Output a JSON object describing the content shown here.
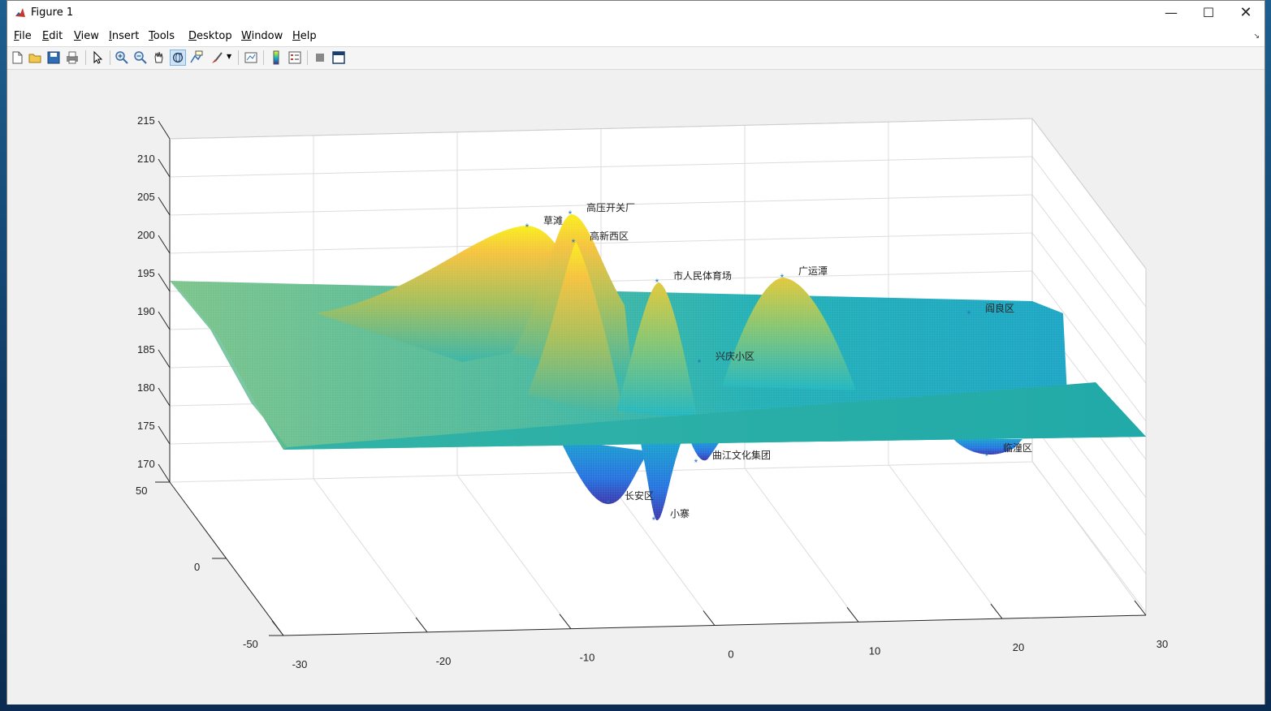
{
  "window": {
    "title": "Figure 1"
  },
  "menu": [
    {
      "label": "File",
      "key": "F",
      "rest": "ile"
    },
    {
      "label": "Edit",
      "key": "E",
      "rest": "dit"
    },
    {
      "label": "View",
      "key": "V",
      "rest": "iew"
    },
    {
      "label": "Insert",
      "key": "I",
      "rest": "nsert"
    },
    {
      "label": "Tools",
      "key": "T",
      "rest": "ools"
    },
    {
      "label": "Desktop",
      "key": "D",
      "rest": "esktop"
    },
    {
      "label": "Window",
      "key": "W",
      "rest": "indow"
    },
    {
      "label": "Help",
      "key": "H",
      "rest": "elp"
    }
  ],
  "toolbar_icons": [
    "new-figure-icon",
    "open-file-icon",
    "save-icon",
    "print-icon",
    "select-pointer-icon",
    "zoom-in-icon",
    "zoom-out-icon",
    "pan-hand-icon",
    "rotate-3d-icon",
    "data-cursor-icon",
    "brush-icon",
    "link-plot-icon",
    "colorbar-icon",
    "legend-icon",
    "hide-plot-tools-icon",
    "show-plot-tools-icon"
  ],
  "active_tool": "rotate-3d-icon",
  "chart_data": {
    "type": "surface",
    "colormap": "parula",
    "grid": true,
    "x_ticks": [
      "-30",
      "-20",
      "-10",
      "0",
      "10",
      "20",
      "30"
    ],
    "y_ticks": [
      "-50",
      "0",
      "50"
    ],
    "z_ticks": [
      "170",
      "175",
      "180",
      "185",
      "190",
      "195",
      "200",
      "205",
      "210",
      "215"
    ],
    "xlim": [
      -30,
      30
    ],
    "ylim": [
      -50,
      50
    ],
    "zlim": [
      170,
      215
    ],
    "annotations": [
      {
        "label": "高压开关厂",
        "z": 201
      },
      {
        "label": "草滩",
        "z": 200
      },
      {
        "label": "高新西区",
        "z": 200
      },
      {
        "label": "市人民体育场",
        "z": 195
      },
      {
        "label": "广运潭",
        "z": 195
      },
      {
        "label": "阎良区",
        "z": 193
      },
      {
        "label": "兴庆小区",
        "z": 184
      },
      {
        "label": "曲江文化集团",
        "z": 175
      },
      {
        "label": "长安区",
        "z": 176
      },
      {
        "label": "小寨",
        "z": 174
      },
      {
        "label": "临潼区",
        "z": 176
      }
    ]
  }
}
